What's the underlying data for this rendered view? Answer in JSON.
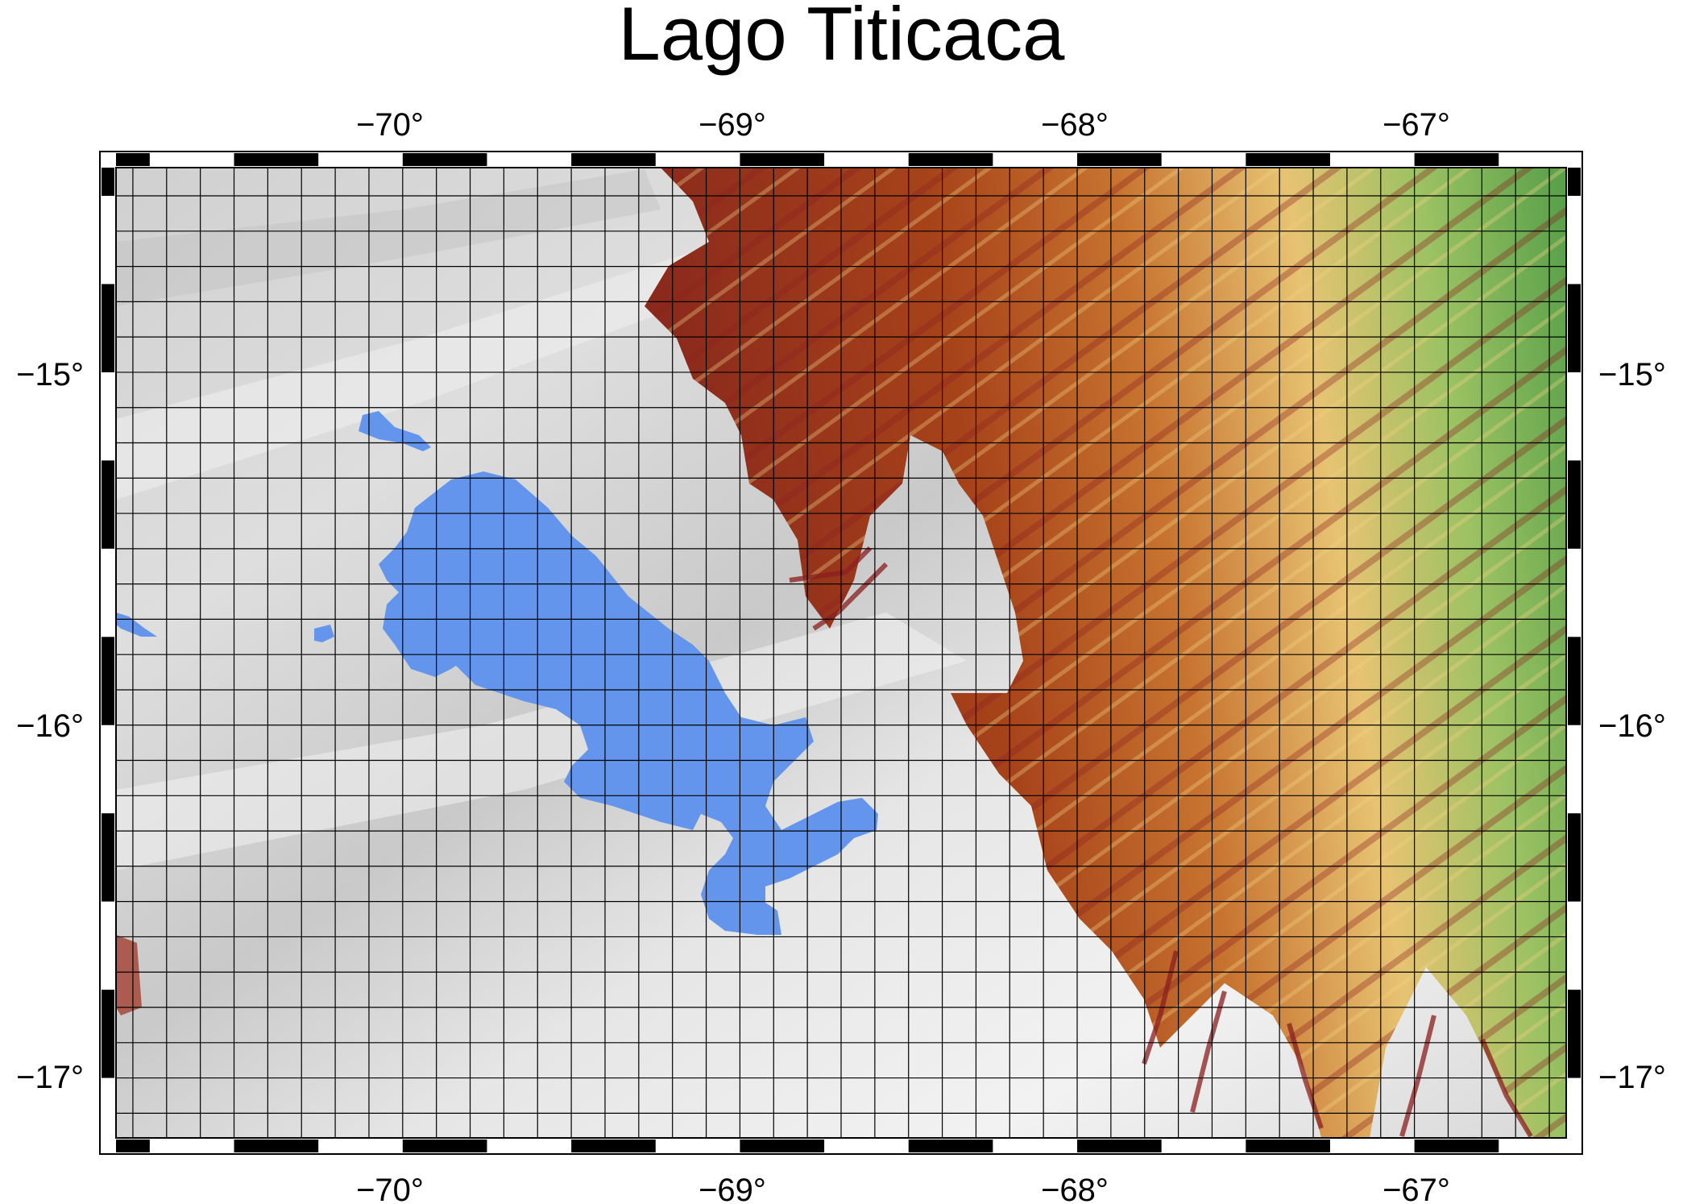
{
  "map": {
    "title": "Lago Titicaca",
    "lon_range": [
      -70.85,
      -66.55
    ],
    "lat_range": [
      -17.17,
      -14.42
    ],
    "top_ticks": [
      "−70°",
      "−69°",
      "−68°",
      "−67°"
    ],
    "bottom_ticks": [
      "−70°",
      "−69°",
      "−68°",
      "−67°"
    ],
    "left_ticks": [
      "−15°",
      "−16°",
      "−17°"
    ],
    "right_ticks": [
      "−15°",
      "−16°",
      "−17°"
    ],
    "lon_tick_values": [
      -70,
      -69,
      -68,
      -67
    ],
    "lat_tick_values": [
      -15,
      -16,
      -17
    ],
    "gridline_spacing_deg": 0.1,
    "frame_segment_deg": 0.25,
    "colors": {
      "lake": "#6495ed",
      "lowland_green": "#4c9a45",
      "mid_yellow": "#e8cc74",
      "highland_brown": "#a2400f",
      "ridge_darkred": "#8b1f1f",
      "altiplano_gray": "#c8c8c8",
      "frame_black": "#000000"
    }
  }
}
